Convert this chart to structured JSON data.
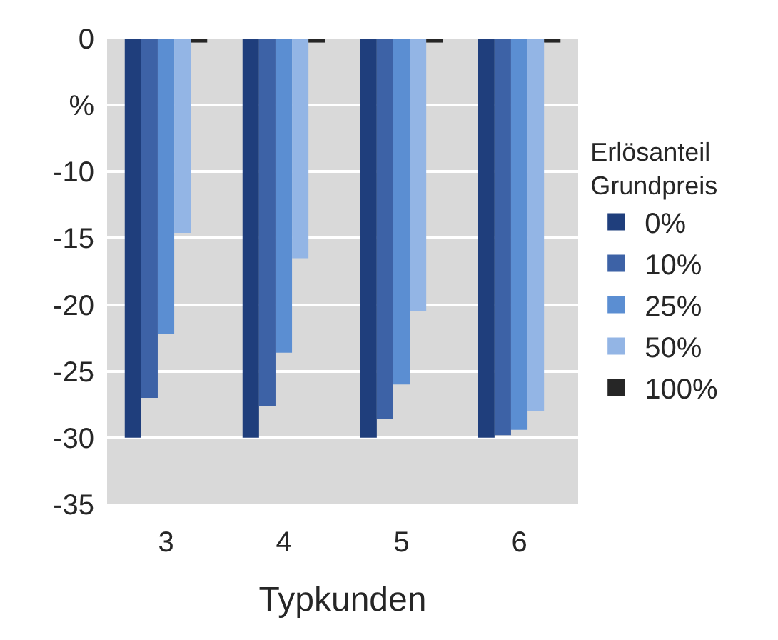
{
  "chart_data": {
    "type": "bar",
    "xlabel": "Typkunden",
    "legend_title": "Erlösanteil Grundpreis",
    "categories": [
      "3",
      "4",
      "5",
      "6"
    ],
    "series": [
      {
        "name": "0%",
        "color": "#1f3e7c",
        "values": [
          -30,
          -30,
          -30,
          -30
        ]
      },
      {
        "name": "10%",
        "color": "#3d62a6",
        "values": [
          -27,
          -27.6,
          -28.6,
          -29.8
        ]
      },
      {
        "name": "25%",
        "color": "#5b8ed2",
        "values": [
          -22.2,
          -23.6,
          -26,
          -29.4
        ]
      },
      {
        "name": "50%",
        "color": "#93b5e5",
        "values": [
          -14.6,
          -16.5,
          -20.5,
          -28
        ]
      },
      {
        "name": "100%",
        "color": "#262626",
        "values": [
          -0.3,
          -0.3,
          -0.3,
          -0.3
        ]
      }
    ],
    "ylim": [
      -35,
      0
    ],
    "yticks": [
      0,
      {
        "value": -5,
        "label": "%"
      },
      -10,
      -15,
      -20,
      -25,
      -30,
      -35
    ],
    "grid": "y",
    "legend": "right"
  }
}
